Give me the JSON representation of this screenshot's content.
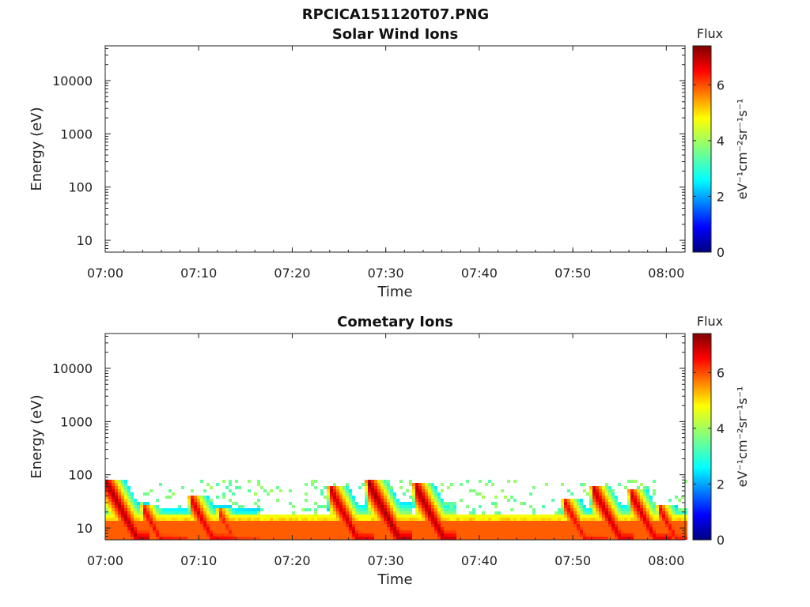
{
  "figure_title": "RPCICA151120T07.PNG",
  "chart_data": [
    {
      "type": "heatmap",
      "title": "Solar Wind Ions",
      "xlabel": "Time",
      "ylabel": "Energy (eV)",
      "x_range": [
        "07:00",
        "08:02"
      ],
      "x_ticks": [
        "07:00",
        "07:10",
        "07:20",
        "07:30",
        "07:40",
        "07:50",
        "08:00"
      ],
      "y_scale": "log",
      "y_range": [
        6,
        45000
      ],
      "y_ticks": [
        {
          "label": "10",
          "value": 10
        },
        {
          "label": "100",
          "value": 100
        },
        {
          "label": "1000",
          "value": 1000
        },
        {
          "label": "10000",
          "value": 10000
        }
      ],
      "colorbar": {
        "title": "Flux",
        "label": "eV⁻¹cm⁻²sr⁻¹s⁻¹",
        "range": [
          0,
          7.4
        ],
        "ticks": [
          "0",
          "2",
          "4",
          "6"
        ],
        "colormap": "jet"
      },
      "data": []
    },
    {
      "type": "heatmap",
      "title": "Cometary Ions",
      "xlabel": "Time",
      "ylabel": "Energy (eV)",
      "x_range": [
        "07:00",
        "08:02"
      ],
      "x_ticks": [
        "07:00",
        "07:10",
        "07:20",
        "07:30",
        "07:40",
        "07:50",
        "08:00"
      ],
      "y_scale": "log",
      "y_range": [
        6,
        45000
      ],
      "y_ticks": [
        {
          "label": "10",
          "value": 10
        },
        {
          "label": "100",
          "value": 100
        },
        {
          "label": "1000",
          "value": 1000
        },
        {
          "label": "10000",
          "value": 10000
        }
      ],
      "colorbar": {
        "title": "Flux",
        "label": "eV⁻¹cm⁻²sr⁻¹s⁻¹",
        "range": [
          0,
          7.4
        ],
        "ticks": [
          "0",
          "2",
          "4",
          "6"
        ],
        "colormap": "jet"
      },
      "background_band": {
        "energy_min": 6,
        "energy_max": 18,
        "flux": 5.8
      },
      "noise_energy_max": 80,
      "spikes": [
        {
          "time": "07:00",
          "peak_energy": 70,
          "flux": 7.2
        },
        {
          "time": "07:04",
          "peak_energy": 22,
          "flux": 6.6
        },
        {
          "time": "07:09",
          "peak_energy": 35,
          "flux": 6.8
        },
        {
          "time": "07:12",
          "peak_energy": 20,
          "flux": 6.4
        },
        {
          "time": "07:24",
          "peak_energy": 50,
          "flux": 7.0
        },
        {
          "time": "07:28",
          "peak_energy": 70,
          "flux": 7.3
        },
        {
          "time": "07:33",
          "peak_energy": 60,
          "flux": 7.2
        },
        {
          "time": "07:49",
          "peak_energy": 30,
          "flux": 6.6
        },
        {
          "time": "07:52",
          "peak_energy": 55,
          "flux": 7.0
        },
        {
          "time": "07:56",
          "peak_energy": 45,
          "flux": 6.9
        },
        {
          "time": "07:59",
          "peak_energy": 25,
          "flux": 6.6
        }
      ]
    }
  ]
}
